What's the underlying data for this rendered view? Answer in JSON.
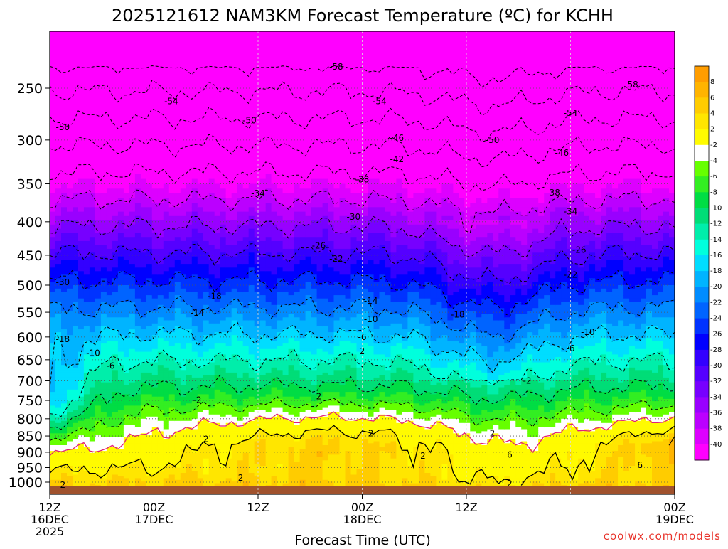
{
  "chart_data": {
    "type": "contour",
    "title": "2025121612 NAM3KM Forecast Temperature (ºC) for KCHH",
    "xlabel": "Forecast Time (UTC)",
    "ylabel": "",
    "credit": "coolwx.com/models",
    "x_ticks": [
      {
        "time": "12Z",
        "date": "16DEC",
        "year": "2025"
      },
      {
        "time": "00Z",
        "date": "17DEC",
        "year": ""
      },
      {
        "time": "12Z",
        "date": "",
        "year": ""
      },
      {
        "time": "00Z",
        "date": "18DEC",
        "year": ""
      },
      {
        "time": "12Z",
        "date": "",
        "year": ""
      },
      {
        "time": "00Z",
        "date": "19DEC",
        "year": ""
      }
    ],
    "y_ticks": [
      250,
      300,
      350,
      400,
      450,
      500,
      550,
      600,
      650,
      700,
      750,
      800,
      850,
      900,
      950,
      1000
    ],
    "y_range_hpa": [
      1030,
      200
    ],
    "y_scale": "log-pressure",
    "x_range_hours": [
      0,
      72
    ],
    "grid": true,
    "colorbar": {
      "labels": [
        "8",
        "6",
        "4",
        "2",
        "-2",
        "-4",
        "-6",
        "-8",
        "-10",
        "-12",
        "-14",
        "-16",
        "-18",
        "-20",
        "-22",
        "-24",
        "-26",
        "-28",
        "-30",
        "-32",
        "-34",
        "-36",
        "-38",
        "-40"
      ],
      "colors": [
        "#ff9d00",
        "#ffb400",
        "#ffcc00",
        "#ffe600",
        "#fffb00",
        "#ffffff",
        "#66ff00",
        "#33ee22",
        "#00dd44",
        "#00dd77",
        "#00eeaa",
        "#00ffdd",
        "#00ddff",
        "#00b4ff",
        "#008cff",
        "#0064ff",
        "#0033ff",
        "#0000ff",
        "#3300ff",
        "#5500ff",
        "#7700ff",
        "#9900ff",
        "#bb00ff",
        "#dd00ff",
        "#ff00ff"
      ]
    },
    "contour_labels": [
      {
        "hpa": 232,
        "h": 33,
        "text": "-58"
      },
      {
        "hpa": 247,
        "h": 67,
        "text": "-58"
      },
      {
        "hpa": 262,
        "h": 14,
        "text": "-54"
      },
      {
        "hpa": 262,
        "h": 38,
        "text": "-54"
      },
      {
        "hpa": 273,
        "h": 60,
        "text": "-54"
      },
      {
        "hpa": 280,
        "h": 23,
        "text": "-50"
      },
      {
        "hpa": 287,
        "h": 1.5,
        "text": "-50"
      },
      {
        "hpa": 300,
        "h": 51,
        "text": "-50"
      },
      {
        "hpa": 298,
        "h": 40,
        "text": "-46"
      },
      {
        "hpa": 314,
        "h": 59,
        "text": "-46"
      },
      {
        "hpa": 321,
        "h": 40,
        "text": "-42"
      },
      {
        "hpa": 345,
        "h": 36,
        "text": "-38"
      },
      {
        "hpa": 361,
        "h": 58,
        "text": "-38"
      },
      {
        "hpa": 362,
        "h": 24,
        "text": "-34"
      },
      {
        "hpa": 386,
        "h": 60,
        "text": "-34"
      },
      {
        "hpa": 393,
        "h": 35,
        "text": "-30"
      },
      {
        "hpa": 495,
        "h": 1.5,
        "text": "-30"
      },
      {
        "hpa": 435,
        "h": 31,
        "text": "-26"
      },
      {
        "hpa": 442,
        "h": 61,
        "text": "-26"
      },
      {
        "hpa": 456,
        "h": 33,
        "text": "-22"
      },
      {
        "hpa": 482,
        "h": 60,
        "text": "-22"
      },
      {
        "hpa": 520,
        "h": 19,
        "text": "-18"
      },
      {
        "hpa": 555,
        "h": 47,
        "text": "-18"
      },
      {
        "hpa": 605,
        "h": 1.5,
        "text": "-18"
      },
      {
        "hpa": 528,
        "h": 37,
        "text": "-14"
      },
      {
        "hpa": 551,
        "h": 17,
        "text": "-14"
      },
      {
        "hpa": 564,
        "h": 37,
        "text": "-10"
      },
      {
        "hpa": 635,
        "h": 5,
        "text": "-10"
      },
      {
        "hpa": 590,
        "h": 62,
        "text": "-10"
      },
      {
        "hpa": 600,
        "h": 36,
        "text": "-6"
      },
      {
        "hpa": 625,
        "h": 60,
        "text": "-6"
      },
      {
        "hpa": 664,
        "h": 7,
        "text": "-6"
      },
      {
        "hpa": 631,
        "h": 36,
        "text": "2"
      },
      {
        "hpa": 700,
        "h": 55,
        "text": "-2"
      },
      {
        "hpa": 749,
        "h": 17,
        "text": "-2"
      },
      {
        "hpa": 740,
        "h": 31,
        "text": "2"
      },
      {
        "hpa": 843,
        "h": 37,
        "text": "2"
      },
      {
        "hpa": 860,
        "h": 18,
        "text": "2"
      },
      {
        "hpa": 843,
        "h": 51,
        "text": "2"
      },
      {
        "hpa": 912,
        "h": 43,
        "text": "2"
      },
      {
        "hpa": 908,
        "h": 53,
        "text": "6"
      },
      {
        "hpa": 942,
        "h": 68,
        "text": "6"
      },
      {
        "hpa": 985,
        "h": 22,
        "text": "2"
      },
      {
        "hpa": 1005,
        "h": 53,
        "text": "2"
      },
      {
        "hpa": 1010,
        "h": 1.5,
        "text": "2"
      }
    ]
  }
}
